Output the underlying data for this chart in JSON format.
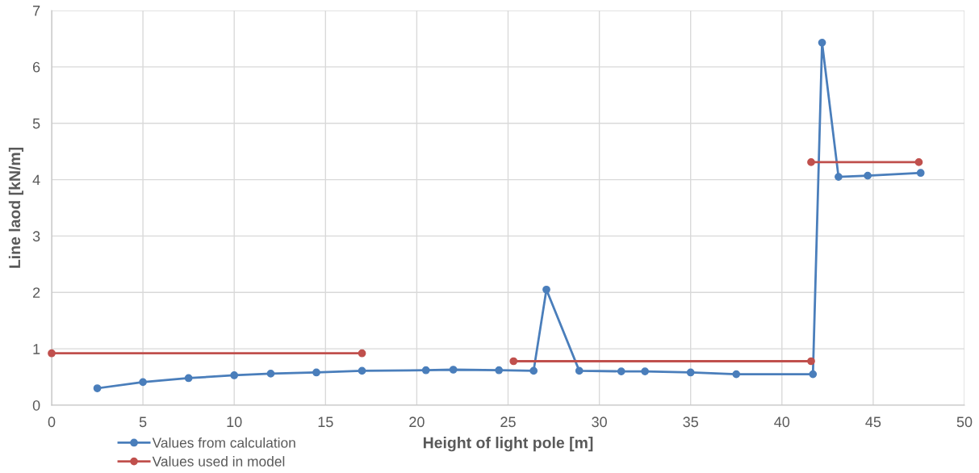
{
  "chart_data": {
    "type": "line",
    "xlabel": "Height of light pole [m]",
    "ylabel": "Line laod [kN/m]",
    "xlim": [
      0,
      50
    ],
    "xticks": [
      0,
      5,
      10,
      15,
      20,
      25,
      30,
      35,
      40,
      45,
      50
    ],
    "ylim": [
      0,
      7
    ],
    "yticks": [
      0,
      1,
      2,
      3,
      4,
      5,
      6,
      7
    ],
    "grid": true,
    "legend": "bottom left",
    "marker": "circle",
    "line_style": "solid",
    "series": [
      {
        "name": "Values from calculation",
        "color": "#4a7ebb",
        "x": [
          2.5,
          5,
          7.5,
          10,
          12,
          14.5,
          17,
          20.5,
          22,
          24.5,
          26.4,
          27.1,
          28.9,
          31.2,
          32.5,
          35,
          37.5,
          41.7,
          42.2,
          43.1,
          44.7,
          47.6
        ],
        "values": [
          0.3,
          0.41,
          0.48,
          0.53,
          0.56,
          0.58,
          0.61,
          0.62,
          0.63,
          0.62,
          0.61,
          2.05,
          0.61,
          0.6,
          0.6,
          0.58,
          0.55,
          0.55,
          6.43,
          4.05,
          4.07,
          4.12
        ]
      },
      {
        "name": "Values used in model",
        "color": "#c0504d",
        "x": [
          0,
          17
        ],
        "values": [
          0.92,
          0.92
        ]
      },
      {
        "color": "#c0504d",
        "x": [
          25.3,
          41.6
        ],
        "values": [
          0.78,
          0.78
        ]
      },
      {
        "color": "#c0504d",
        "x": [
          41.6,
          47.5
        ],
        "values": [
          4.31,
          4.31
        ]
      }
    ]
  }
}
